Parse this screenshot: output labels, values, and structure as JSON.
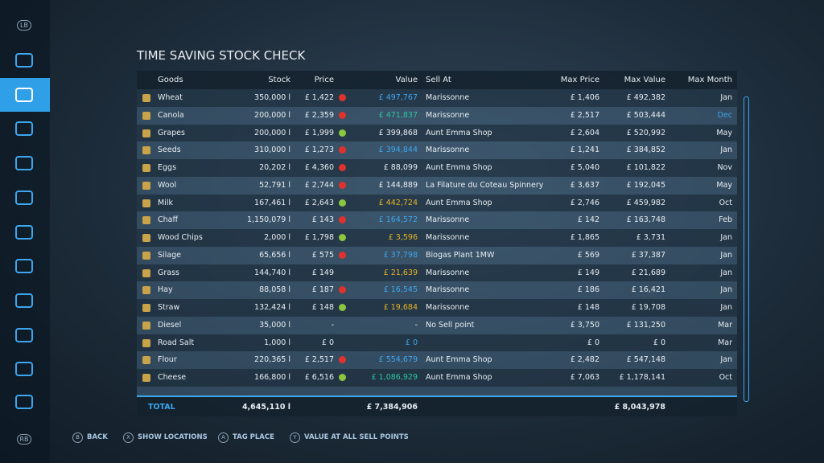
{
  "sidebar": {
    "top_button": "LB",
    "bottom_button": "RB"
  },
  "title": "TIME SAVING STOCK CHECK",
  "table": {
    "columns": [
      "Goods",
      "Stock",
      "Price",
      "Value",
      "Sell At",
      "Max Price",
      "Max Value",
      "Max Month"
    ],
    "rows": [
      {
        "goods": "Wheat",
        "stock": "350,000 l",
        "price": "£ 1,422",
        "trend": "down",
        "value": "£ 497,767",
        "value_color": "#3ea6ee",
        "sell_at": "Marissonne",
        "max_price": "£ 1,406",
        "max_value": "£ 492,382",
        "max_month": "Jan"
      },
      {
        "goods": "Canola",
        "stock": "200,000 l",
        "price": "£ 2,359",
        "trend": "down",
        "value": "£ 471,837",
        "value_color": "#2ec4a2",
        "sell_at": "Marissonne",
        "max_price": "£ 2,517",
        "max_value": "£ 503,444",
        "max_month": "Dec",
        "month_color": "#3ea6ee"
      },
      {
        "goods": "Grapes",
        "stock": "200,000 l",
        "price": "£ 1,999",
        "trend": "up",
        "value": "£ 399,868",
        "sell_at": "Aunt Emma Shop",
        "max_price": "£ 2,604",
        "max_value": "£ 520,992",
        "max_month": "May"
      },
      {
        "goods": "Seeds",
        "stock": "310,000 l",
        "price": "£ 1,273",
        "trend": "down",
        "value": "£ 394,844",
        "value_color": "#3ea6ee",
        "sell_at": "Marissonne",
        "max_price": "£ 1,241",
        "max_value": "£ 384,852",
        "max_month": "Jan"
      },
      {
        "goods": "Eggs",
        "stock": "20,202 l",
        "price": "£ 4,360",
        "trend": "down",
        "value": "£ 88,099",
        "sell_at": "Aunt Emma Shop",
        "max_price": "£ 5,040",
        "max_value": "£ 101,822",
        "max_month": "Nov"
      },
      {
        "goods": "Wool",
        "stock": "52,791 l",
        "price": "£ 2,744",
        "trend": "down",
        "value": "£ 144,889",
        "sell_at": "La Filature du Coteau Spinnery",
        "max_price": "£ 3,637",
        "max_value": "£ 192,045",
        "max_month": "May"
      },
      {
        "goods": "Milk",
        "stock": "167,461 l",
        "price": "£ 2,643",
        "trend": "up",
        "value": "£ 442,724",
        "value_color": "#e6b422",
        "sell_at": "Aunt Emma Shop",
        "max_price": "£ 2,746",
        "max_value": "£ 459,982",
        "max_month": "Oct"
      },
      {
        "goods": "Chaff",
        "stock": "1,150,079 l",
        "price": "£ 143",
        "trend": "down",
        "value": "£ 164,572",
        "value_color": "#3ea6ee",
        "sell_at": "Marissonne",
        "max_price": "£ 142",
        "max_value": "£ 163,748",
        "max_month": "Feb"
      },
      {
        "goods": "Wood Chips",
        "stock": "2,000 l",
        "price": "£ 1,798",
        "trend": "up",
        "value": "£ 3,596",
        "value_color": "#e6b422",
        "sell_at": "Marissonne",
        "max_price": "£ 1,865",
        "max_value": "£ 3,731",
        "max_month": "Jan"
      },
      {
        "goods": "Silage",
        "stock": "65,656 l",
        "price": "£ 575",
        "trend": "down",
        "value": "£ 37,798",
        "value_color": "#3ea6ee",
        "sell_at": "Biogas Plant 1MW",
        "max_price": "£ 569",
        "max_value": "£ 37,387",
        "max_month": "Jan"
      },
      {
        "goods": "Grass",
        "stock": "144,740 l",
        "price": "£ 149",
        "value": "£ 21,639",
        "value_color": "#e6b422",
        "sell_at": "Marissonne",
        "max_price": "£ 149",
        "max_value": "£ 21,689",
        "max_month": "Jan"
      },
      {
        "goods": "Hay",
        "stock": "88,058 l",
        "price": "£ 187",
        "trend": "down",
        "value": "£ 16,545",
        "value_color": "#3ea6ee",
        "sell_at": "Marissonne",
        "max_price": "£ 186",
        "max_value": "£ 16,421",
        "max_month": "Jan"
      },
      {
        "goods": "Straw",
        "stock": "132,424 l",
        "price": "£ 148",
        "trend": "up",
        "value": "£ 19,684",
        "value_color": "#e6b422",
        "sell_at": "Marissonne",
        "max_price": "£ 148",
        "max_value": "£ 19,708",
        "max_month": "Jan"
      },
      {
        "goods": "Diesel",
        "stock": "35,000 l",
        "price": "-",
        "value": "-",
        "sell_at": "No Sell point",
        "max_price": "£ 3,750",
        "max_value": "£ 131,250",
        "max_month": "Mar"
      },
      {
        "goods": "Road Salt",
        "stock": "1,000 l",
        "price": "£ 0",
        "value": "£ 0",
        "value_color": "#3ea6ee",
        "max_price": "£ 0",
        "max_value": "£ 0",
        "max_month": "Mar"
      },
      {
        "goods": "Flour",
        "stock": "220,365 l",
        "price": "£ 2,517",
        "trend": "down",
        "value": "£ 554,679",
        "value_color": "#3ea6ee",
        "sell_at": "Aunt Emma Shop",
        "max_price": "£ 2,482",
        "max_value": "£ 547,148",
        "max_month": "Jan"
      },
      {
        "goods": "Cheese",
        "stock": "166,800 l",
        "price": "£ 6,516",
        "trend": "up",
        "value": "£ 1,086,929",
        "value_color": "#2ec4a2",
        "sell_at": "Aunt Emma Shop",
        "max_price": "£ 7,063",
        "max_value": "£ 1,178,141",
        "max_month": "Oct"
      }
    ],
    "total": {
      "label": "TOTAL",
      "stock": "4,645,110 l",
      "value": "£ 7,384,906",
      "max_value": "£ 8,043,978"
    }
  },
  "footer": [
    {
      "key": "B",
      "label": "BACK"
    },
    {
      "key": "X",
      "label": "SHOW LOCATIONS"
    },
    {
      "key": "A",
      "label": "TAG PLACE"
    },
    {
      "key": "Y",
      "label": "VALUE AT ALL SELL POINTS"
    }
  ]
}
